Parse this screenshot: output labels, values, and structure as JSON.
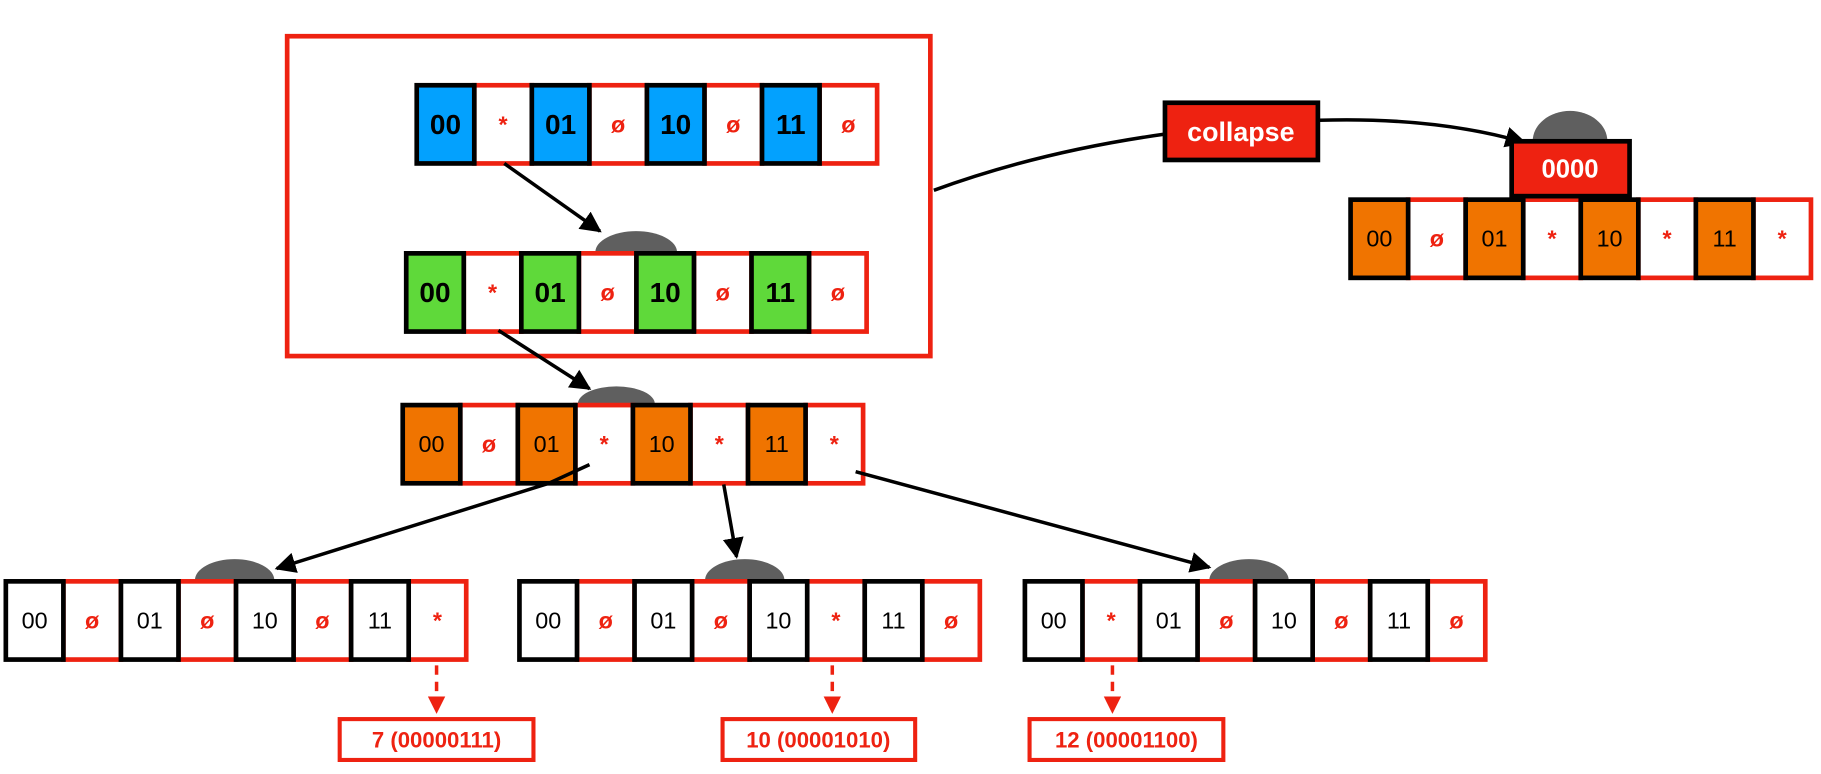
{
  "colors": {
    "blue": "#03a1fe",
    "green": "#5fd93a",
    "orange": "#f07400",
    "red": "#ee2211",
    "hump": "#5f5f5f"
  },
  "labels": [
    "00",
    "01",
    "10",
    "11"
  ],
  "rows": {
    "blue": {
      "fill": "#03a1fe",
      "values": [
        "*",
        "ø",
        "ø",
        "ø"
      ]
    },
    "green": {
      "fill": "#5fd93a",
      "values": [
        "*",
        "ø",
        "ø",
        "ø"
      ]
    },
    "orange": {
      "fill": "#f07400",
      "values": [
        "ø",
        "*",
        "*",
        "*"
      ]
    },
    "collapsed": {
      "fill": "#f07400",
      "values": [
        "ø",
        "*",
        "*",
        "*"
      ]
    },
    "leaf1": {
      "fill": "#ffffff",
      "values": [
        "ø",
        "ø",
        "ø",
        "*"
      ]
    },
    "leaf2": {
      "fill": "#ffffff",
      "values": [
        "ø",
        "ø",
        "*",
        "ø"
      ]
    },
    "leaf3": {
      "fill": "#ffffff",
      "values": [
        "*",
        "ø",
        "ø",
        "ø"
      ]
    }
  },
  "collapse_label": "collapse",
  "prefix_label": "0000",
  "results": [
    "7 (00000111)",
    "10 (00001010)",
    "12 (00001100)"
  ]
}
